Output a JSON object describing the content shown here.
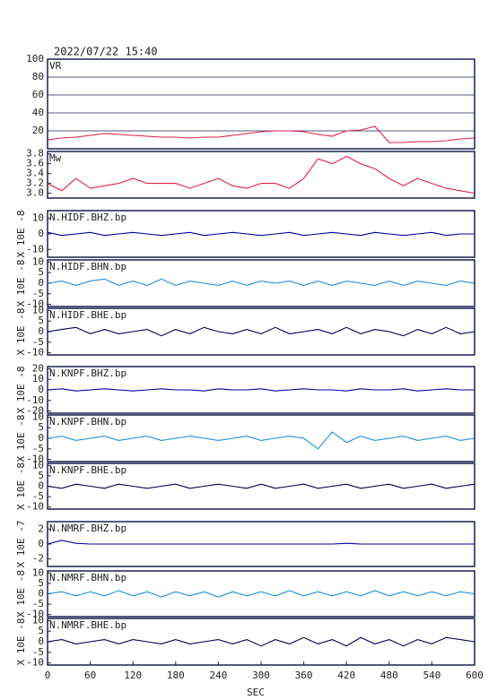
{
  "chart_data": [
    {
      "type": "line",
      "title": "2022/07/22 15:40",
      "label": "VR",
      "color": "#e0204a",
      "grid": true,
      "xlim": [
        0,
        600
      ],
      "ylim": [
        0,
        100
      ],
      "yticks": [
        20,
        40,
        60,
        80,
        100
      ],
      "x": [
        0,
        20,
        40,
        60,
        80,
        100,
        120,
        140,
        160,
        180,
        200,
        220,
        240,
        260,
        280,
        300,
        320,
        340,
        360,
        380,
        400,
        420,
        440,
        460,
        480,
        500,
        520,
        540,
        560,
        580,
        600
      ],
      "values": [
        10,
        12,
        13,
        15,
        17,
        16,
        15,
        14,
        13,
        13,
        12,
        13,
        13,
        15,
        17,
        19,
        20,
        20,
        19,
        16,
        14,
        20,
        21,
        25,
        7,
        7,
        8,
        8,
        9,
        11,
        12
      ]
    },
    {
      "type": "line",
      "label": "Mw",
      "color": "#e0204a",
      "grid": false,
      "xlim": [
        0,
        600
      ],
      "ylim": [
        2.9,
        3.85
      ],
      "yticks": [
        {
          "value": 3,
          "label": "3.0"
        },
        3.2,
        3.4,
        3.6,
        3.8
      ],
      "x": [
        0,
        20,
        40,
        60,
        80,
        100,
        120,
        140,
        160,
        180,
        200,
        220,
        240,
        260,
        280,
        300,
        320,
        340,
        360,
        380,
        400,
        420,
        440,
        460,
        480,
        500,
        520,
        540,
        560,
        580,
        600
      ],
      "values": [
        3.2,
        3.05,
        3.3,
        3.1,
        3.15,
        3.2,
        3.3,
        3.2,
        3.2,
        3.2,
        3.1,
        3.2,
        3.3,
        3.15,
        3.1,
        3.2,
        3.2,
        3.1,
        3.3,
        3.7,
        3.6,
        3.75,
        3.6,
        3.5,
        3.3,
        3.15,
        3.3,
        3.2,
        3.1,
        3.05,
        3.0
      ]
    },
    {
      "type": "line",
      "label": "N.HIDF.BHZ.bp",
      "ylabel": "X 10E -8",
      "color": "#0000a0",
      "grid": false,
      "xlim": [
        0,
        600
      ],
      "ylim": [
        -15,
        15
      ],
      "yticks": [
        10,
        0,
        -10
      ],
      "x": [
        0,
        20,
        40,
        60,
        80,
        100,
        120,
        140,
        160,
        180,
        200,
        220,
        240,
        260,
        280,
        300,
        320,
        340,
        360,
        380,
        400,
        420,
        440,
        460,
        480,
        500,
        520,
        540,
        560,
        580,
        600
      ],
      "values": [
        1,
        -1,
        0,
        1,
        -1,
        0,
        1,
        0,
        -1,
        0,
        1,
        -1,
        0,
        1,
        0,
        -1,
        0,
        1,
        -1,
        0,
        1,
        0,
        -1,
        1,
        0,
        -1,
        0,
        1,
        -1,
        0,
        0
      ]
    },
    {
      "type": "line",
      "label": "N.HIDF.BHN.bp",
      "ylabel": "X 10E -8",
      "color": "#1e90d8",
      "grid": false,
      "xlim": [
        0,
        600
      ],
      "ylim": [
        -11,
        11
      ],
      "yticks": [
        10,
        5,
        0,
        -5,
        -10
      ],
      "x": [
        0,
        20,
        40,
        60,
        80,
        100,
        120,
        140,
        160,
        180,
        200,
        220,
        240,
        260,
        280,
        300,
        320,
        340,
        360,
        380,
        400,
        420,
        440,
        460,
        480,
        500,
        520,
        540,
        560,
        580,
        600
      ],
      "values": [
        0,
        1,
        -1,
        1,
        2,
        -1,
        1,
        -1,
        2,
        -1,
        1,
        0,
        -1,
        1,
        -1,
        1,
        0,
        1,
        -1,
        1,
        -1,
        1,
        0,
        -1,
        1,
        -1,
        1,
        0,
        -1,
        1,
        0
      ]
    },
    {
      "type": "line",
      "label": "N.HIDF.BHE.bp",
      "ylabel": "X 10E -8",
      "color": "#000050",
      "grid": false,
      "xlim": [
        0,
        600
      ],
      "ylim": [
        -11,
        11
      ],
      "yticks": [
        10,
        5,
        0,
        -5,
        -10
      ],
      "x": [
        0,
        20,
        40,
        60,
        80,
        100,
        120,
        140,
        160,
        180,
        200,
        220,
        240,
        260,
        280,
        300,
        320,
        340,
        360,
        380,
        400,
        420,
        440,
        460,
        480,
        500,
        520,
        540,
        560,
        580,
        600
      ],
      "values": [
        0,
        1,
        2,
        -1,
        1,
        -1,
        0,
        1,
        -2,
        1,
        -1,
        2,
        0,
        -1,
        1,
        -1,
        2,
        -1,
        0,
        1,
        -1,
        2,
        -1,
        1,
        0,
        -2,
        1,
        -1,
        2,
        -1,
        0
      ]
    },
    {
      "type": "line",
      "label": "N.KNPF.BHZ.bp",
      "ylabel": "X 10E -8",
      "color": "#0000a0",
      "grid": false,
      "xlim": [
        0,
        600
      ],
      "ylim": [
        -22,
        22
      ],
      "yticks": [
        20,
        10,
        0,
        -10,
        -20
      ],
      "x": [
        0,
        20,
        40,
        60,
        80,
        100,
        120,
        140,
        160,
        180,
        200,
        220,
        240,
        260,
        280,
        300,
        320,
        340,
        360,
        380,
        400,
        420,
        440,
        460,
        480,
        500,
        520,
        540,
        560,
        580,
        600
      ],
      "values": [
        0,
        1,
        -1,
        0,
        1,
        0,
        -1,
        0,
        1,
        0,
        0,
        -1,
        1,
        0,
        0,
        1,
        -1,
        0,
        1,
        0,
        0,
        -1,
        1,
        0,
        0,
        1,
        -1,
        0,
        1,
        0,
        0
      ]
    },
    {
      "type": "line",
      "label": "N.KNPF.BHN.bp",
      "ylabel": "X 10E -8",
      "color": "#1e90d8",
      "grid": false,
      "xlim": [
        0,
        600
      ],
      "ylim": [
        -11,
        11
      ],
      "yticks": [
        10,
        5,
        0,
        -5,
        -10
      ],
      "x": [
        0,
        20,
        40,
        60,
        80,
        100,
        120,
        140,
        160,
        180,
        200,
        220,
        240,
        260,
        280,
        300,
        320,
        340,
        360,
        380,
        400,
        420,
        440,
        460,
        480,
        500,
        520,
        540,
        560,
        580,
        600
      ],
      "values": [
        0,
        1,
        -1,
        0,
        1,
        -1,
        0,
        1,
        -1,
        0,
        1,
        0,
        -1,
        0,
        1,
        -1,
        0,
        1,
        0,
        -5,
        3,
        -2,
        1,
        -1,
        0,
        1,
        -1,
        0,
        1,
        -1,
        0
      ]
    },
    {
      "type": "line",
      "label": "N.KNPF.BHE.bp",
      "ylabel": "X 10E -8",
      "color": "#000050",
      "grid": false,
      "xlim": [
        0,
        600
      ],
      "ylim": [
        -11,
        11
      ],
      "yticks": [
        10,
        5,
        0,
        -5,
        -10
      ],
      "x": [
        0,
        20,
        40,
        60,
        80,
        100,
        120,
        140,
        160,
        180,
        200,
        220,
        240,
        260,
        280,
        300,
        320,
        340,
        360,
        380,
        400,
        420,
        440,
        460,
        480,
        500,
        520,
        540,
        560,
        580,
        600
      ],
      "values": [
        0,
        -1,
        1,
        0,
        -1,
        1,
        0,
        -1,
        0,
        1,
        -1,
        0,
        1,
        0,
        -1,
        1,
        -1,
        0,
        1,
        -1,
        0,
        1,
        -1,
        0,
        1,
        -1,
        0,
        1,
        -1,
        0,
        1
      ]
    },
    {
      "type": "line",
      "label": "N.NMRF.BHZ.bp",
      "ylabel": "X 10E -7",
      "color": "#0000a0",
      "grid": false,
      "xlim": [
        0,
        600
      ],
      "ylim": [
        -3,
        3
      ],
      "yticks": [
        2,
        0,
        -2
      ],
      "x": [
        0,
        20,
        40,
        60,
        80,
        100,
        120,
        140,
        160,
        180,
        200,
        220,
        240,
        260,
        280,
        300,
        320,
        340,
        360,
        380,
        400,
        420,
        440,
        460,
        480,
        500,
        520,
        540,
        560,
        580,
        600
      ],
      "values": [
        0,
        0.5,
        0.1,
        0,
        0,
        0,
        0,
        0,
        0,
        0,
        0,
        0,
        0,
        0,
        0,
        0,
        0,
        0,
        0,
        0,
        0,
        0.1,
        0,
        0,
        0,
        0,
        0,
        0,
        0,
        0,
        0
      ]
    },
    {
      "type": "line",
      "label": "N.NMRF.BHN.bp",
      "ylabel": "X 10E -8",
      "color": "#1e90d8",
      "grid": false,
      "xlim": [
        0,
        600
      ],
      "ylim": [
        -11,
        11
      ],
      "yticks": [
        10,
        5,
        0,
        -5,
        -10
      ],
      "x": [
        0,
        20,
        40,
        60,
        80,
        100,
        120,
        140,
        160,
        180,
        200,
        220,
        240,
        260,
        280,
        300,
        320,
        340,
        360,
        380,
        400,
        420,
        440,
        460,
        480,
        500,
        520,
        540,
        560,
        580,
        600
      ],
      "values": [
        0,
        1,
        -1,
        1,
        -1,
        1.5,
        -1,
        1,
        -1.5,
        1,
        -1,
        1,
        -1.5,
        1,
        -1,
        1,
        -1,
        1.5,
        -1,
        1,
        -1,
        1,
        -1,
        1.5,
        -1,
        1,
        -1,
        1,
        -1,
        1,
        0
      ]
    },
    {
      "type": "line",
      "label": "N.NMRF.BHE.bp",
      "ylabel": "X 10E -8",
      "color": "#000050",
      "grid": false,
      "xlim": [
        0,
        600
      ],
      "ylim": [
        -11,
        11
      ],
      "yticks": [
        10,
        5,
        0,
        -5,
        -10
      ],
      "xticks": [
        0,
        60,
        120,
        180,
        240,
        300,
        360,
        420,
        480,
        540,
        600
      ],
      "xlabel": "SEC",
      "x": [
        0,
        20,
        40,
        60,
        80,
        100,
        120,
        140,
        160,
        180,
        200,
        220,
        240,
        260,
        280,
        300,
        320,
        340,
        360,
        380,
        400,
        420,
        440,
        460,
        480,
        500,
        520,
        540,
        560,
        580,
        600
      ],
      "values": [
        0,
        1,
        -1,
        0,
        1,
        -1,
        1,
        0,
        -1,
        1,
        -1,
        0,
        1,
        -1,
        1,
        -2,
        1,
        -1,
        2,
        -1,
        1,
        -2,
        2,
        -1,
        1,
        -2,
        1,
        -1,
        2,
        1,
        0
      ]
    }
  ]
}
